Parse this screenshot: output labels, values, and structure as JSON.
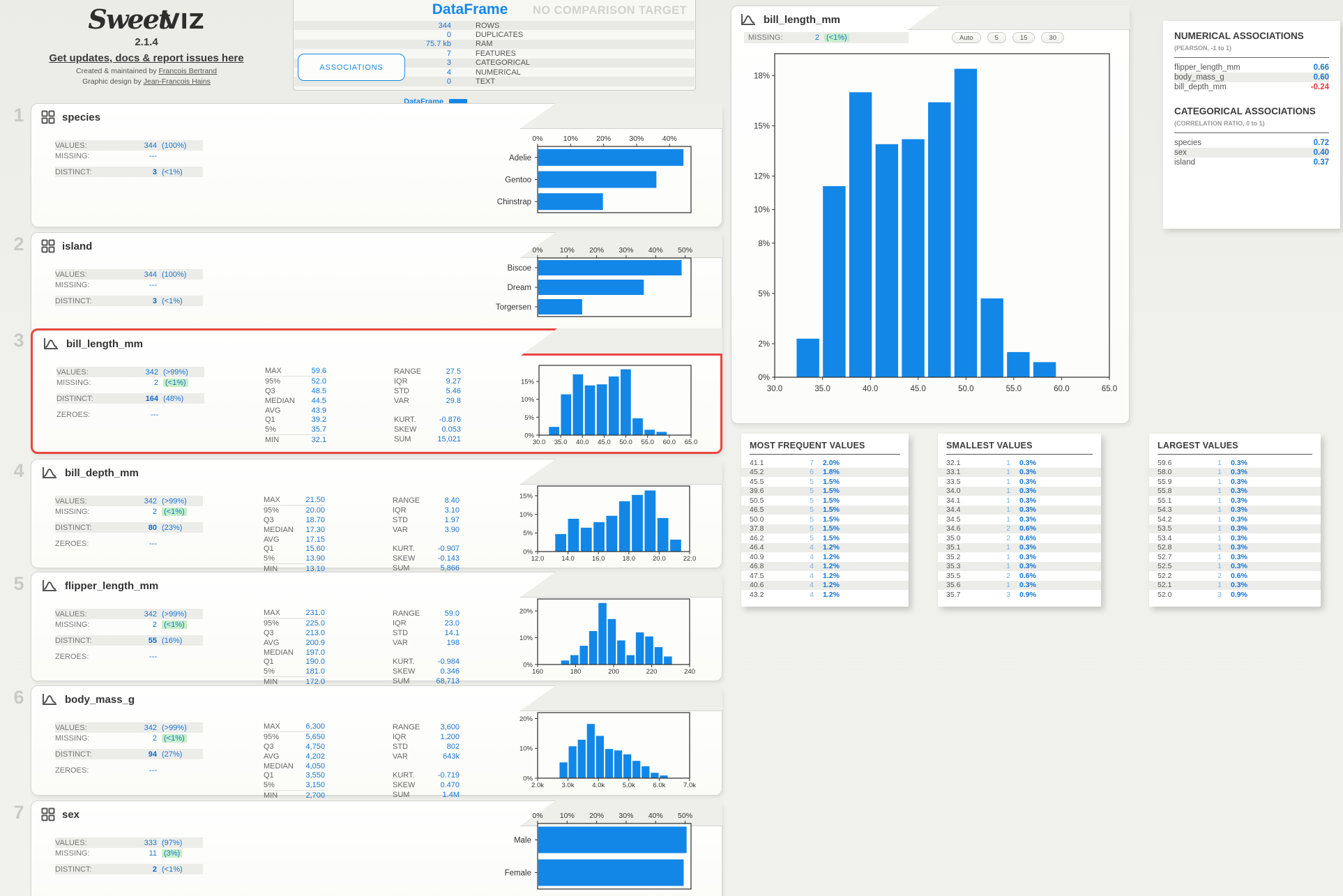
{
  "brand": {
    "logo_sweet": "Sweet",
    "logo_viz": "VIZ",
    "version": "2.1.4",
    "updates_link": "Get updates, docs & report issues here",
    "created_prefix": "Created & maintained by ",
    "created_name": "Francois Bertrand",
    "design_prefix": "Graphic design by ",
    "design_name": "Jean-Francois Hains"
  },
  "summary": {
    "title": "DataFrame",
    "no_comparison": "NO COMPARISON TARGET",
    "associations_label": "ASSOCIATIONS",
    "legend_label": "DataFrame",
    "rows": [
      {
        "value": "344",
        "label": "ROWS"
      },
      {
        "value": "0",
        "label": "DUPLICATES"
      },
      {
        "value": "75.7 kb",
        "label": "RAM"
      },
      {
        "value": "7",
        "label": "FEATURES"
      },
      {
        "value": "3",
        "label": "CATEGORICAL"
      },
      {
        "value": "4",
        "label": "NUMERICAL"
      },
      {
        "value": "0",
        "label": "TEXT"
      }
    ]
  },
  "labels": {
    "values": "VALUES:",
    "missing": "MISSING:",
    "distinct": "DISTINCT:",
    "zeroes": "ZEROES:"
  },
  "features": [
    {
      "index": "1",
      "name": "species",
      "values": "344",
      "values_pct": "(100%)",
      "missing": "---",
      "missing_pct": "",
      "distinct": "3",
      "distinct_pct": "(<1%)"
    },
    {
      "index": "2",
      "name": "island",
      "values": "344",
      "values_pct": "(100%)",
      "missing": "---",
      "missing_pct": "",
      "distinct": "3",
      "distinct_pct": "(<1%)"
    },
    {
      "index": "3",
      "name": "bill_length_mm",
      "values": "342",
      "values_pct": "(>99%)",
      "missing": "2",
      "missing_pct": "(<1%)",
      "distinct": "164",
      "distinct_pct": "(48%)",
      "zeroes": "---",
      "stats_left": [
        [
          "MAX",
          "59.6"
        ],
        [
          "95%",
          "52.0"
        ],
        [
          "Q3",
          "48.5"
        ],
        [
          "MEDIAN",
          "44.5"
        ],
        [
          "AVG",
          "43.9"
        ],
        [
          "Q1",
          "39.2"
        ],
        [
          "5%",
          "35.7"
        ],
        [
          "MIN",
          "32.1"
        ]
      ],
      "stats_right": [
        [
          "RANGE",
          "27.5"
        ],
        [
          "IQR",
          "9.27"
        ],
        [
          "STD",
          "5.46"
        ],
        [
          "VAR",
          "29.8"
        ],
        [
          "",
          ""
        ],
        [
          "KURT.",
          "-0.876"
        ],
        [
          "SKEW",
          "0.053"
        ],
        [
          "SUM",
          "15,021"
        ]
      ]
    },
    {
      "index": "4",
      "name": "bill_depth_mm",
      "values": "342",
      "values_pct": "(>99%)",
      "missing": "2",
      "missing_pct": "(<1%)",
      "distinct": "80",
      "distinct_pct": "(23%)",
      "zeroes": "---",
      "stats_left": [
        [
          "MAX",
          "21.50"
        ],
        [
          "95%",
          "20.00"
        ],
        [
          "Q3",
          "18.70"
        ],
        [
          "MEDIAN",
          "17.30"
        ],
        [
          "AVG",
          "17.15"
        ],
        [
          "Q1",
          "15.60"
        ],
        [
          "5%",
          "13.90"
        ],
        [
          "MIN",
          "13.10"
        ]
      ],
      "stats_right": [
        [
          "RANGE",
          "8.40"
        ],
        [
          "IQR",
          "3.10"
        ],
        [
          "STD",
          "1.97"
        ],
        [
          "VAR",
          "3.90"
        ],
        [
          "",
          ""
        ],
        [
          "KURT.",
          "-0.907"
        ],
        [
          "SKEW",
          "-0.143"
        ],
        [
          "SUM",
          "5,866"
        ]
      ]
    },
    {
      "index": "5",
      "name": "flipper_length_mm",
      "values": "342",
      "values_pct": "(>99%)",
      "missing": "2",
      "missing_pct": "(<1%)",
      "distinct": "55",
      "distinct_pct": "(16%)",
      "zeroes": "---",
      "stats_left": [
        [
          "MAX",
          "231.0"
        ],
        [
          "95%",
          "225.0"
        ],
        [
          "Q3",
          "213.0"
        ],
        [
          "AVG",
          "200.9"
        ],
        [
          "MEDIAN",
          "197.0"
        ],
        [
          "Q1",
          "190.0"
        ],
        [
          "5%",
          "181.0"
        ],
        [
          "MIN",
          "172.0"
        ]
      ],
      "stats_right": [
        [
          "RANGE",
          "59.0"
        ],
        [
          "IQR",
          "23.0"
        ],
        [
          "STD",
          "14.1"
        ],
        [
          "VAR",
          "198"
        ],
        [
          "",
          ""
        ],
        [
          "KURT.",
          "-0.984"
        ],
        [
          "SKEW",
          "0.346"
        ],
        [
          "SUM",
          "68,713"
        ]
      ]
    },
    {
      "index": "6",
      "name": "body_mass_g",
      "values": "342",
      "values_pct": "(>99%)",
      "missing": "2",
      "missing_pct": "(<1%)",
      "distinct": "94",
      "distinct_pct": "(27%)",
      "zeroes": "---",
      "stats_left": [
        [
          "MAX",
          "6,300"
        ],
        [
          "95%",
          "5,650"
        ],
        [
          "Q3",
          "4,750"
        ],
        [
          "AVG",
          "4,202"
        ],
        [
          "MEDIAN",
          "4,050"
        ],
        [
          "Q1",
          "3,550"
        ],
        [
          "5%",
          "3,150"
        ],
        [
          "MIN",
          "2,700"
        ]
      ],
      "stats_right": [
        [
          "RANGE",
          "3,600"
        ],
        [
          "IQR",
          "1,200"
        ],
        [
          "STD",
          "802"
        ],
        [
          "VAR",
          "643k"
        ],
        [
          "",
          ""
        ],
        [
          "KURT.",
          "-0.719"
        ],
        [
          "SKEW",
          "0.470"
        ],
        [
          "SUM",
          "1.4M"
        ]
      ]
    },
    {
      "index": "7",
      "name": "sex",
      "values": "333",
      "values_pct": "(97%)",
      "missing": "11",
      "missing_pct": "(3%)",
      "distinct": "2",
      "distinct_pct": "(<1%)"
    }
  ],
  "detail_panel": {
    "title": "bill_length_mm",
    "missing_label": "MISSING:",
    "missing_value": "2",
    "missing_pct": "(<1%)",
    "buttons": [
      "Auto",
      "5",
      "15",
      "30"
    ]
  },
  "associations": {
    "numerical_title": "NUMERICAL ASSOCIATIONS",
    "numerical_subtitle": "(PEARSON, -1 to 1)",
    "numerical_rows": [
      [
        "flipper_length_mm",
        "0.66"
      ],
      [
        "body_mass_g",
        "0.60"
      ],
      [
        "bill_depth_mm",
        "-0.24"
      ]
    ],
    "categorical_title": "CATEGORICAL ASSOCIATIONS",
    "categorical_subtitle": "(CORRELATION RATIO, 0 to 1)",
    "categorical_rows": [
      [
        "species",
        "0.72"
      ],
      [
        "sex",
        "0.40"
      ],
      [
        "island",
        "0.37"
      ]
    ]
  },
  "value_tables": [
    {
      "title": "MOST FREQUENT VALUES",
      "rows": [
        [
          "41.1",
          "7",
          "2.0%"
        ],
        [
          "45.2",
          "6",
          "1.8%"
        ],
        [
          "45.5",
          "5",
          "1.5%"
        ],
        [
          "39.6",
          "5",
          "1.5%"
        ],
        [
          "50.5",
          "5",
          "1.5%"
        ],
        [
          "46.5",
          "5",
          "1.5%"
        ],
        [
          "50.0",
          "5",
          "1.5%"
        ],
        [
          "37.8",
          "5",
          "1.5%"
        ],
        [
          "46.2",
          "5",
          "1.5%"
        ],
        [
          "46.4",
          "4",
          "1.2%"
        ],
        [
          "40.9",
          "4",
          "1.2%"
        ],
        [
          "46.8",
          "4",
          "1.2%"
        ],
        [
          "47.5",
          "4",
          "1.2%"
        ],
        [
          "40.6",
          "4",
          "1.2%"
        ],
        [
          "43.2",
          "4",
          "1.2%"
        ]
      ]
    },
    {
      "title": "SMALLEST VALUES",
      "rows": [
        [
          "32.1",
          "1",
          "0.3%"
        ],
        [
          "33.1",
          "1",
          "0.3%"
        ],
        [
          "33.5",
          "1",
          "0.3%"
        ],
        [
          "34.0",
          "1",
          "0.3%"
        ],
        [
          "34.1",
          "1",
          "0.3%"
        ],
        [
          "34.4",
          "1",
          "0.3%"
        ],
        [
          "34.5",
          "1",
          "0.3%"
        ],
        [
          "34.6",
          "2",
          "0.6%"
        ],
        [
          "35.0",
          "2",
          "0.6%"
        ],
        [
          "35.1",
          "1",
          "0.3%"
        ],
        [
          "35.2",
          "1",
          "0.3%"
        ],
        [
          "35.3",
          "1",
          "0.3%"
        ],
        [
          "35.5",
          "2",
          "0.6%"
        ],
        [
          "35.6",
          "1",
          "0.3%"
        ],
        [
          "35.7",
          "3",
          "0.9%"
        ]
      ]
    },
    {
      "title": "LARGEST VALUES",
      "rows": [
        [
          "59.6",
          "1",
          "0.3%"
        ],
        [
          "58.0",
          "1",
          "0.3%"
        ],
        [
          "55.9",
          "1",
          "0.3%"
        ],
        [
          "55.8",
          "1",
          "0.3%"
        ],
        [
          "55.1",
          "1",
          "0.3%"
        ],
        [
          "54.3",
          "1",
          "0.3%"
        ],
        [
          "54.2",
          "1",
          "0.3%"
        ],
        [
          "53.5",
          "1",
          "0.3%"
        ],
        [
          "53.4",
          "1",
          "0.3%"
        ],
        [
          "52.8",
          "1",
          "0.3%"
        ],
        [
          "52.7",
          "1",
          "0.3%"
        ],
        [
          "52.5",
          "1",
          "0.3%"
        ],
        [
          "52.2",
          "2",
          "0.6%"
        ],
        [
          "52.1",
          "1",
          "0.3%"
        ],
        [
          "52.0",
          "3",
          "0.9%"
        ]
      ]
    }
  ],
  "chart_data": [
    {
      "id": "species_bar",
      "type": "bar",
      "orientation": "horizontal",
      "title": "species distribution",
      "categories": [
        "Adelie",
        "Gentoo",
        "Chinstrap"
      ],
      "values": [
        44.2,
        36.0,
        19.8
      ],
      "xticks": [
        0,
        10,
        20,
        30,
        40
      ],
      "xmax": 46.5,
      "unit": "%",
      "color": "#1287e8"
    },
    {
      "id": "island_bar",
      "type": "bar",
      "orientation": "horizontal",
      "title": "island distribution",
      "categories": [
        "Biscoe",
        "Dream",
        "Torgersen"
      ],
      "values": [
        48.8,
        36.0,
        15.1
      ],
      "xticks": [
        0,
        10,
        20,
        30,
        40,
        50
      ],
      "xmax": 52,
      "unit": "%",
      "color": "#1287e8"
    },
    {
      "id": "sex_bar",
      "type": "bar",
      "orientation": "horizontal",
      "title": "sex distribution",
      "categories": [
        "Male",
        "Female"
      ],
      "values": [
        50.5,
        49.5
      ],
      "xticks": [
        0,
        10,
        20,
        30,
        40,
        50
      ],
      "xmax": 52,
      "unit": "%",
      "color": "#1287e8"
    },
    {
      "id": "bill_length_hist_mini",
      "type": "histogram",
      "title": "bill_length_mm distribution (%)",
      "bin_start": 32.1,
      "bin_width": 2.75,
      "values": [
        2.3,
        11.4,
        17.0,
        13.9,
        14.2,
        16.4,
        18.4,
        4.7,
        1.5,
        0.9
      ],
      "xlim": [
        30,
        65
      ],
      "xticks": [
        30,
        35,
        40,
        45,
        50,
        55,
        60,
        65
      ],
      "xtick_labels": [
        "30.0",
        "35.0",
        "40.0",
        "45.0",
        "50.0",
        "55.0",
        "60.0",
        "65.0"
      ],
      "yticks": [
        0,
        5,
        10,
        15
      ],
      "ymax": 19.5,
      "color": "#1287e8"
    },
    {
      "id": "bill_length_hist_main",
      "type": "histogram",
      "title": "bill_length_mm distribution (%)",
      "bin_start": 32.1,
      "bin_width": 2.75,
      "values": [
        2.3,
        11.4,
        17.0,
        13.9,
        14.2,
        16.4,
        18.4,
        4.7,
        1.5,
        0.9
      ],
      "xlim": [
        30,
        65
      ],
      "xticks": [
        30,
        35,
        40,
        45,
        50,
        55,
        60,
        65
      ],
      "xtick_labels": [
        "30.0",
        "35.0",
        "40.0",
        "45.0",
        "50.0",
        "55.0",
        "60.0",
        "65.0"
      ],
      "yticks": [
        0,
        2,
        5,
        8,
        10,
        12,
        15,
        18
      ],
      "ymax": 19.3,
      "color": "#1287e8"
    },
    {
      "id": "bill_depth_hist",
      "type": "histogram",
      "title": "bill_depth_mm distribution (%)",
      "bin_start": 13.1,
      "bin_width": 0.84,
      "values": [
        4.7,
        8.8,
        6.4,
        7.9,
        9.6,
        13.5,
        15.2,
        16.4,
        9.0,
        3.2
      ],
      "xlim": [
        12,
        22
      ],
      "xticks": [
        12,
        14,
        16,
        18,
        20,
        22
      ],
      "xtick_labels": [
        "12.0",
        "14.0",
        "16.0",
        "18.0",
        "20.0",
        "22.0"
      ],
      "yticks": [
        0,
        5,
        10,
        15
      ],
      "ymax": 17.6,
      "color": "#1287e8"
    },
    {
      "id": "flipper_hist",
      "type": "histogram",
      "title": "flipper_length_mm distribution (%)",
      "bin_start": 172,
      "bin_width": 4.92,
      "values": [
        1.5,
        3.5,
        7.0,
        12.5,
        23.0,
        17.0,
        9.0,
        3.5,
        12.0,
        10.5,
        6.5,
        3.0
      ],
      "xlim": [
        160,
        240
      ],
      "xticks": [
        160,
        180,
        200,
        220,
        240
      ],
      "xtick_labels": [
        "160",
        "180",
        "200",
        "220",
        "240"
      ],
      "yticks": [
        0,
        10,
        20
      ],
      "ymax": 24.5,
      "color": "#1287e8"
    },
    {
      "id": "body_mass_hist",
      "type": "histogram",
      "title": "body_mass_g distribution (%)",
      "bin_start": 2700,
      "bin_width": 300,
      "values": [
        5.3,
        10.7,
        12.9,
        18.2,
        14.2,
        9.8,
        9.3,
        8.0,
        5.8,
        4.0,
        1.8,
        0.9
      ],
      "xlim": [
        2000,
        7000
      ],
      "xticks": [
        2000,
        3000,
        4000,
        5000,
        6000,
        7000
      ],
      "xtick_labels": [
        "2.0k",
        "3.0k",
        "4.0k",
        "5.0k",
        "6.0k",
        "7.0k"
      ],
      "yticks": [
        0,
        10,
        20
      ],
      "ymax": 22,
      "color": "#1287e8"
    }
  ]
}
